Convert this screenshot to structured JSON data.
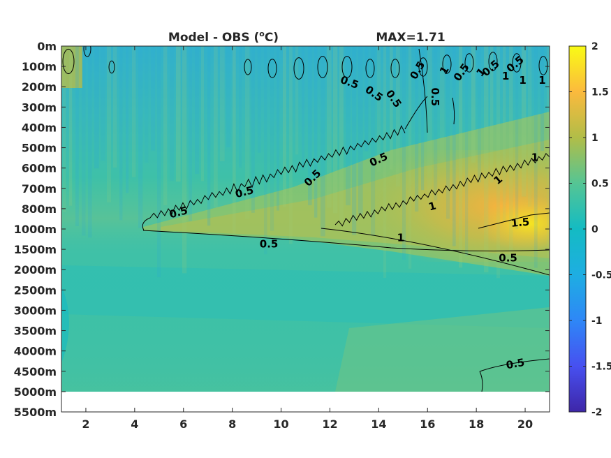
{
  "chart_data": {
    "type": "heatmap",
    "title": "Model - OBS (°C)",
    "title_parts": {
      "prefix": "Model - OBS (",
      "superscript": "o",
      "suffix": "C)"
    },
    "annotation": "MAX=1.71",
    "xlim": [
      1,
      21
    ],
    "x_ticks": [
      2,
      4,
      6,
      8,
      10,
      12,
      14,
      16,
      18,
      20
    ],
    "y_ticks": [
      "0m",
      "100m",
      "200m",
      "300m",
      "400m",
      "500m",
      "600m",
      "700m",
      "800m",
      "1000m",
      "1500m",
      "2000m",
      "2500m",
      "3000m",
      "3500m",
      "4000m",
      "4500m",
      "5000m",
      "5500m"
    ],
    "y_data_extent": [
      "0m",
      "5000m"
    ],
    "colorbar": {
      "colormap": "parula",
      "clim": [
        -2,
        2
      ],
      "ticks": [
        2,
        1.5,
        1,
        0.5,
        0,
        -0.5,
        -1,
        -1.5,
        -2
      ],
      "tick_labels": [
        "2",
        "1.5",
        "1",
        "0.5",
        "0",
        "-0.5",
        "-1",
        "-1.5",
        "-2"
      ]
    },
    "contour_levels": [
      0.5,
      1,
      1.5
    ],
    "contour_labels": [
      {
        "text": "0.5",
        "x": 12.8,
        "y_level": 1.8,
        "rot": 20
      },
      {
        "text": "0.5",
        "x": 13.8,
        "y_level": 2.35,
        "rot": 35
      },
      {
        "text": "0.5",
        "x": 14.6,
        "y_level": 2.6,
        "rot": 55
      },
      {
        "text": "0.5",
        "x": 15.6,
        "y_level": 1.2,
        "rot": -60
      },
      {
        "text": "0.5",
        "x": 16.3,
        "y_level": 2.5,
        "rot": 90
      },
      {
        "text": "1",
        "x": 16.7,
        "y_level": 1.2,
        "rot": -60
      },
      {
        "text": "0.5",
        "x": 17.4,
        "y_level": 1.3,
        "rot": -55
      },
      {
        "text": "1",
        "x": 18.2,
        "y_level": 1.3,
        "rot": -50
      },
      {
        "text": "0.5",
        "x": 18.6,
        "y_level": 1.1,
        "rot": -40
      },
      {
        "text": "1",
        "x": 19.2,
        "y_level": 1.5,
        "rot": 0
      },
      {
        "text": "0.5",
        "x": 19.6,
        "y_level": 0.9,
        "rot": -40
      },
      {
        "text": "1",
        "x": 19.9,
        "y_level": 1.7,
        "rot": 0
      },
      {
        "text": "1",
        "x": 20.7,
        "y_level": 1.7,
        "rot": 0
      },
      {
        "text": "0.5",
        "x": 14.0,
        "y_level": 5.6,
        "rot": -25
      },
      {
        "text": "0.5",
        "x": 11.3,
        "y_level": 6.5,
        "rot": -45
      },
      {
        "text": "0.5",
        "x": 8.5,
        "y_level": 7.2,
        "rot": -15
      },
      {
        "text": "0.5",
        "x": 5.8,
        "y_level": 8.2,
        "rot": -15
      },
      {
        "text": "1",
        "x": 18.9,
        "y_level": 6.6,
        "rot": -40
      },
      {
        "text": "1",
        "x": 20.4,
        "y_level": 5.5,
        "rot": 0
      },
      {
        "text": "1",
        "x": 16.2,
        "y_level": 7.9,
        "rot": -15
      },
      {
        "text": "1.5",
        "x": 19.8,
        "y_level": 8.7,
        "rot": -5
      },
      {
        "text": "1",
        "x": 14.9,
        "y_level": 9.45,
        "rot": 0
      },
      {
        "text": "0.5",
        "x": 9.5,
        "y_level": 9.75,
        "rot": 0
      },
      {
        "text": "0.5",
        "x": 19.3,
        "y_level": 10.45,
        "rot": 0
      },
      {
        "text": "0.5",
        "x": 19.6,
        "y_level": 15.65,
        "rot": -10
      }
    ]
  }
}
